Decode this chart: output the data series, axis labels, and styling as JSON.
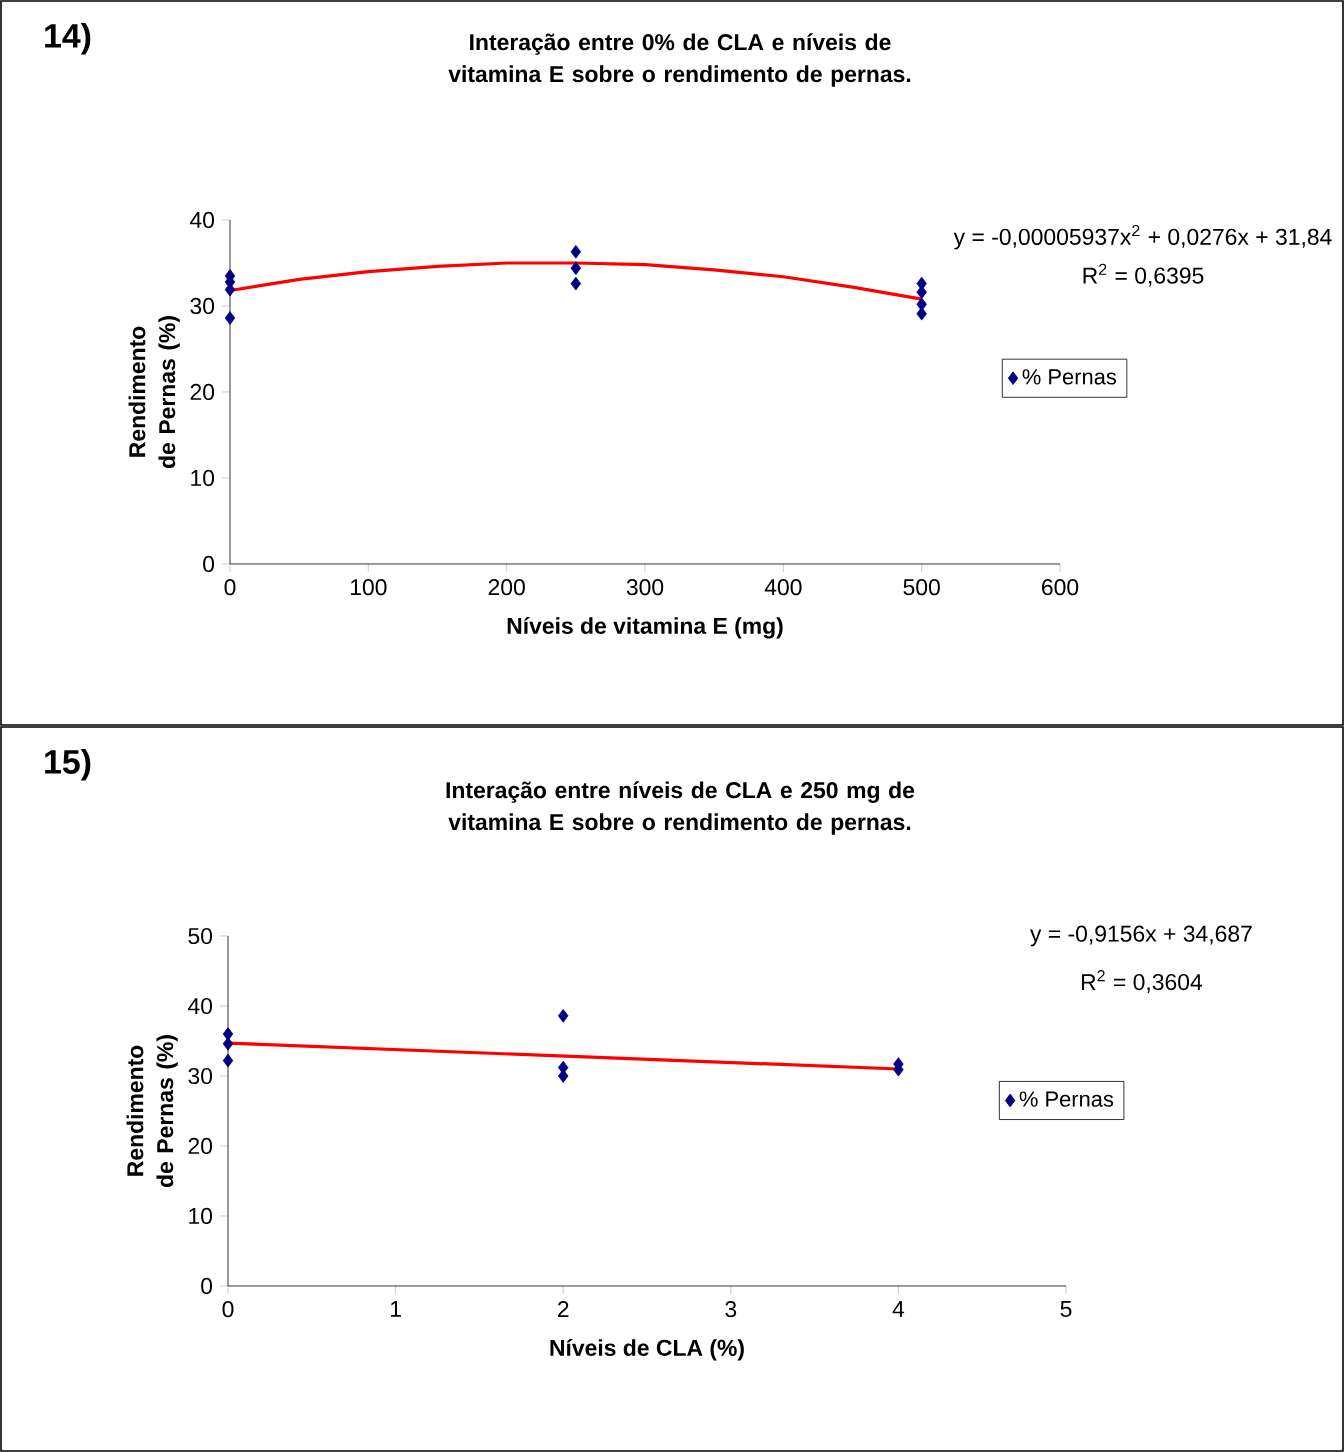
{
  "chart_data": [
    {
      "type": "scatter",
      "title": "Interação entre 0% de CLA e níveis de vitamina E sobre o rendimento de pernas.",
      "xlabel": "Níveis de vitamina E (mg)",
      "ylabel": "Rendimento de Pernas (%)",
      "annotations": [
        "14)",
        "y = -0,00005937x$^{2}$ + 0,0276x + 31,84",
        "R$^{2}$ = 0,6395"
      ],
      "series": [
        {
          "name": "% Pernas",
          "color": "#000080",
          "marker": "diamond",
          "x": [
            0,
            0,
            0,
            0,
            250,
            250,
            250,
            500,
            500,
            500,
            500
          ],
          "values": [
            33.5,
            32.8,
            31.9,
            28.6,
            36.3,
            34.4,
            32.6,
            32.6,
            31.6,
            30.2,
            29.1
          ]
        },
        {
          "type": "line",
          "color": "#ff0000",
          "marker": "none",
          "x": [
            0,
            50,
            100,
            150,
            200,
            250,
            300,
            350,
            400,
            450,
            500
          ],
          "values": [
            31.8,
            33.1,
            34.0,
            34.6,
            35.0,
            35.0,
            34.8,
            34.2,
            33.4,
            32.2,
            30.8
          ]
        }
      ],
      "xlim": [
        0,
        600
      ],
      "xticks": [
        0,
        100,
        200,
        300,
        400,
        500,
        600
      ],
      "ylim": [
        0,
        40
      ],
      "yticks": [
        0,
        10,
        20,
        30,
        40
      ],
      "grid": false,
      "legend": "right"
    },
    {
      "type": "scatter",
      "title": "Interação entre níveis de CLA e 250 mg de vitamina E sobre o rendimento de pernas.",
      "xlabel": "Níveis de CLA (%)",
      "ylabel": "Rendimento de Pernas (%)",
      "annotations": [
        "15)",
        "y = -0,9156x + 34,687",
        "R$^{2}$ = 0,3604"
      ],
      "series": [
        {
          "name": "% Pernas",
          "color": "#000080",
          "marker": "diamond",
          "x": [
            0,
            0,
            0,
            2,
            2,
            2,
            4,
            4
          ],
          "values": [
            36.0,
            34.6,
            32.2,
            38.6,
            31.2,
            30.0,
            31.7,
            30.9
          ]
        },
        {
          "type": "line",
          "color": "#ff0000",
          "marker": "none",
          "x": [
            0,
            4
          ],
          "values": [
            34.7,
            31.0
          ]
        }
      ],
      "xlim": [
        0,
        5
      ],
      "xticks": [
        0,
        1,
        2,
        3,
        4,
        5
      ],
      "ylim": [
        0,
        50
      ],
      "yticks": [
        0,
        10,
        20,
        30,
        40,
        50
      ],
      "grid": false,
      "legend": "right"
    }
  ]
}
